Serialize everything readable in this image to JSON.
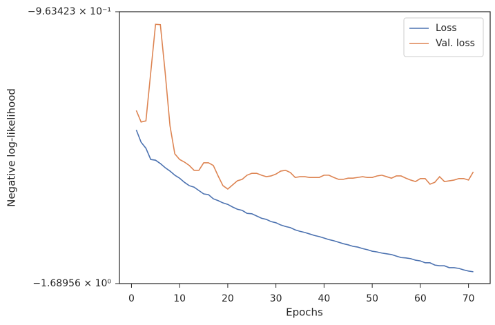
{
  "chart_data": {
    "type": "line",
    "xlabel": "Epochs",
    "ylabel": "Negative log-likelihood",
    "x": [
      1,
      2,
      3,
      4,
      5,
      6,
      7,
      8,
      9,
      10,
      11,
      12,
      13,
      14,
      15,
      16,
      17,
      18,
      19,
      20,
      21,
      22,
      23,
      24,
      25,
      26,
      27,
      28,
      29,
      30,
      31,
      32,
      33,
      34,
      35,
      36,
      37,
      38,
      39,
      40,
      41,
      42,
      43,
      44,
      45,
      46,
      47,
      48,
      49,
      50,
      51,
      52,
      53,
      54,
      55,
      56,
      57,
      58,
      59,
      60,
      61,
      62,
      63,
      64,
      65,
      66,
      67,
      68,
      69,
      70,
      71
    ],
    "series": [
      {
        "name": "Loss",
        "color": "#4c72b0",
        "values": [
          -1.279,
          -1.312,
          -1.328,
          -1.358,
          -1.36,
          -1.369,
          -1.38,
          -1.389,
          -1.4,
          -1.408,
          -1.419,
          -1.428,
          -1.432,
          -1.441,
          -1.45,
          -1.452,
          -1.463,
          -1.468,
          -1.474,
          -1.478,
          -1.485,
          -1.491,
          -1.494,
          -1.502,
          -1.503,
          -1.509,
          -1.515,
          -1.518,
          -1.524,
          -1.527,
          -1.533,
          -1.537,
          -1.54,
          -1.546,
          -1.55,
          -1.553,
          -1.557,
          -1.561,
          -1.564,
          -1.568,
          -1.572,
          -1.575,
          -1.579,
          -1.583,
          -1.586,
          -1.59,
          -1.592,
          -1.596,
          -1.599,
          -1.603,
          -1.605,
          -1.608,
          -1.61,
          -1.612,
          -1.616,
          -1.62,
          -1.621,
          -1.623,
          -1.627,
          -1.629,
          -1.634,
          -1.634,
          -1.64,
          -1.642,
          -1.642,
          -1.647,
          -1.647,
          -1.649,
          -1.653,
          -1.656,
          -1.658
        ]
      },
      {
        "name": "Val. loss",
        "color": "#dd8452",
        "values": [
          -1.227,
          -1.258,
          -1.255,
          -1.126,
          -0.997,
          -0.998,
          -1.126,
          -1.268,
          -1.343,
          -1.358,
          -1.365,
          -1.374,
          -1.387,
          -1.387,
          -1.367,
          -1.367,
          -1.374,
          -1.402,
          -1.428,
          -1.437,
          -1.426,
          -1.415,
          -1.411,
          -1.4,
          -1.395,
          -1.395,
          -1.4,
          -1.404,
          -1.402,
          -1.397,
          -1.389,
          -1.387,
          -1.393,
          -1.406,
          -1.404,
          -1.404,
          -1.406,
          -1.406,
          -1.406,
          -1.4,
          -1.4,
          -1.406,
          -1.411,
          -1.411,
          -1.408,
          -1.408,
          -1.406,
          -1.404,
          -1.406,
          -1.406,
          -1.402,
          -1.4,
          -1.404,
          -1.408,
          -1.402,
          -1.402,
          -1.408,
          -1.413,
          -1.417,
          -1.409,
          -1.409,
          -1.424,
          -1.419,
          -1.404,
          -1.417,
          -1.415,
          -1.413,
          -1.409,
          -1.409,
          -1.413,
          -1.391
        ]
      }
    ],
    "xlim": [
      -2.5,
      74.5
    ],
    "xticks": [
      0,
      10,
      20,
      30,
      40,
      50,
      60,
      70
    ],
    "ylim": [
      -1.68956,
      -0.963423
    ],
    "yticks": [
      {
        "value": -1.68956,
        "label": "−1.68956 × 10⁰"
      },
      {
        "value": -0.963423,
        "label": "−9.63423 × 10⁻¹"
      }
    ],
    "legend": "upper right"
  }
}
